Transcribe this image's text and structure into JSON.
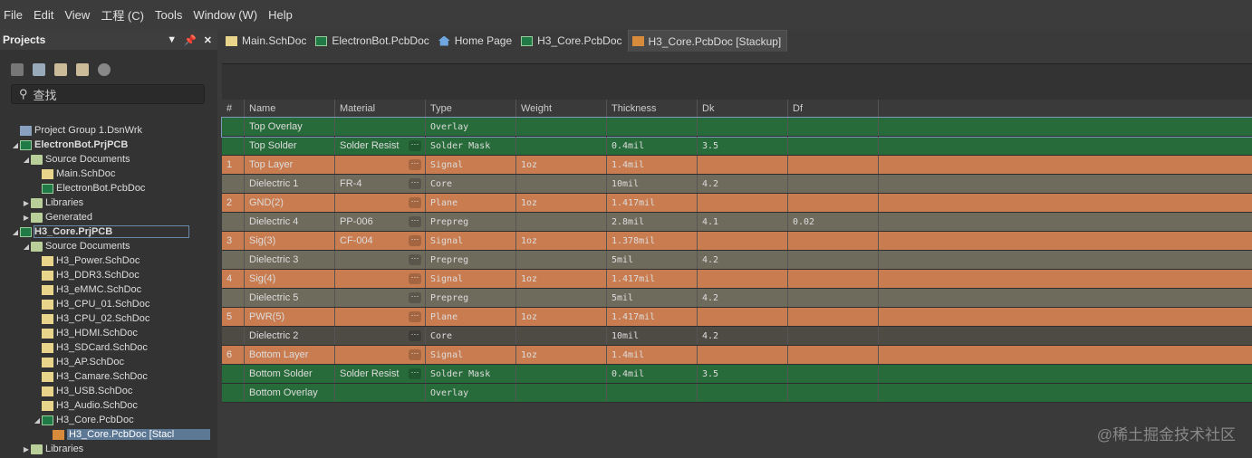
{
  "menu": [
    "File",
    "Edit",
    "View",
    "工程 (C)",
    "Tools",
    "Window (W)",
    "Help"
  ],
  "panel": {
    "title": "Projects",
    "search_placeholder": "查找",
    "tree": [
      {
        "label": "Project Group 1.DsnWrk",
        "indent": 0,
        "icon": "group",
        "arrow": ""
      },
      {
        "label": "ElectronBot.PrjPCB",
        "indent": 0,
        "icon": "pcb",
        "arrow": "expanded",
        "bold": true
      },
      {
        "label": "Source Documents",
        "indent": 1,
        "icon": "folder",
        "arrow": "expanded"
      },
      {
        "label": "Main.SchDoc",
        "indent": 2,
        "icon": "sch",
        "arrow": ""
      },
      {
        "label": "ElectronBot.PcbDoc",
        "indent": 2,
        "icon": "pcb",
        "arrow": ""
      },
      {
        "label": "Libraries",
        "indent": 1,
        "icon": "folder",
        "arrow": "collapsed"
      },
      {
        "label": "Generated",
        "indent": 1,
        "icon": "folder",
        "arrow": "collapsed"
      },
      {
        "label": "H3_Core.PrjPCB",
        "indent": 0,
        "icon": "pcb",
        "arrow": "expanded",
        "bold": true,
        "focus": true
      },
      {
        "label": "Source Documents",
        "indent": 1,
        "icon": "folder",
        "arrow": "expanded"
      },
      {
        "label": "H3_Power.SchDoc",
        "indent": 2,
        "icon": "sch",
        "arrow": ""
      },
      {
        "label": "H3_DDR3.SchDoc",
        "indent": 2,
        "icon": "sch",
        "arrow": ""
      },
      {
        "label": "H3_eMMC.SchDoc",
        "indent": 2,
        "icon": "sch",
        "arrow": ""
      },
      {
        "label": "H3_CPU_01.SchDoc",
        "indent": 2,
        "icon": "sch",
        "arrow": ""
      },
      {
        "label": "H3_CPU_02.SchDoc",
        "indent": 2,
        "icon": "sch",
        "arrow": ""
      },
      {
        "label": "H3_HDMI.SchDoc",
        "indent": 2,
        "icon": "sch",
        "arrow": ""
      },
      {
        "label": "H3_SDCard.SchDoc",
        "indent": 2,
        "icon": "sch",
        "arrow": ""
      },
      {
        "label": "H3_AP.SchDoc",
        "indent": 2,
        "icon": "sch",
        "arrow": ""
      },
      {
        "label": "H3_Camare.SchDoc",
        "indent": 2,
        "icon": "sch",
        "arrow": ""
      },
      {
        "label": "H3_USB.SchDoc",
        "indent": 2,
        "icon": "sch",
        "arrow": ""
      },
      {
        "label": "H3_Audio.SchDoc",
        "indent": 2,
        "icon": "sch",
        "arrow": ""
      },
      {
        "label": "H3_Core.PcbDoc",
        "indent": 2,
        "icon": "pcb",
        "arrow": "expanded"
      },
      {
        "label": "H3_Core.PcbDoc [Stacl",
        "indent": 3,
        "icon": "stk",
        "arrow": "",
        "selected": true
      },
      {
        "label": "Libraries",
        "indent": 1,
        "icon": "folder",
        "arrow": "collapsed"
      }
    ]
  },
  "tabs": [
    {
      "label": "Main.SchDoc",
      "icon": "sch"
    },
    {
      "label": "ElectronBot.PcbDoc",
      "icon": "pcb"
    },
    {
      "label": "Home Page",
      "icon": "home"
    },
    {
      "label": "H3_Core.PcbDoc",
      "icon": "pcb"
    },
    {
      "label": "H3_Core.PcbDoc [Stackup]",
      "icon": "stk",
      "active": true
    }
  ],
  "colors": {
    "overlay": "#286b3a",
    "signal": "#c87c50",
    "dielectric": "#6e6a5c",
    "dielectric_selected": "#4e4b45"
  },
  "columns": [
    "#",
    "Name",
    "Material",
    "Type",
    "Weight",
    "Thickness",
    "Dk",
    "Df"
  ],
  "rows": [
    {
      "num": "",
      "name": "Top Overlay",
      "material": "",
      "type": "Overlay",
      "weight": "",
      "thickness": "",
      "dk": "",
      "df": "",
      "kind": "overlay",
      "dots": false,
      "focus": true
    },
    {
      "num": "",
      "name": "Top Solder",
      "material": "Solder Resist",
      "type": "Solder Mask",
      "weight": "",
      "thickness": "0.4mil",
      "dk": "3.5",
      "df": "",
      "kind": "overlay",
      "dots": true
    },
    {
      "num": "1",
      "name": "Top Layer",
      "material": "",
      "type": "Signal",
      "weight": "1oz",
      "thickness": "1.4mil",
      "dk": "",
      "df": "",
      "kind": "signal",
      "dots": true
    },
    {
      "num": "",
      "name": "Dielectric 1",
      "material": "FR-4",
      "type": "Core",
      "weight": "",
      "thickness": "10mil",
      "dk": "4.2",
      "df": "",
      "kind": "dielectric",
      "dots": true
    },
    {
      "num": "2",
      "name": "GND(2)",
      "material": "",
      "type": "Plane",
      "weight": "1oz",
      "thickness": "1.417mil",
      "dk": "",
      "df": "",
      "kind": "signal",
      "dots": true
    },
    {
      "num": "",
      "name": "Dielectric 4",
      "material": "PP-006",
      "type": "Prepreg",
      "weight": "",
      "thickness": "2.8mil",
      "dk": "4.1",
      "df": "0.02",
      "kind": "dielectric",
      "dots": true
    },
    {
      "num": "3",
      "name": "Sig(3)",
      "material": "CF-004",
      "type": "Signal",
      "weight": "1oz",
      "thickness": "1.378mil",
      "dk": "",
      "df": "",
      "kind": "signal",
      "dots": true
    },
    {
      "num": "",
      "name": "Dielectric 3",
      "material": "",
      "type": "Prepreg",
      "weight": "",
      "thickness": "5mil",
      "dk": "4.2",
      "df": "",
      "kind": "dielectric",
      "dots": true
    },
    {
      "num": "4",
      "name": "Sig(4)",
      "material": "",
      "type": "Signal",
      "weight": "1oz",
      "thickness": "1.417mil",
      "dk": "",
      "df": "",
      "kind": "signal",
      "dots": true
    },
    {
      "num": "",
      "name": "Dielectric 5",
      "material": "",
      "type": "Prepreg",
      "weight": "",
      "thickness": "5mil",
      "dk": "4.2",
      "df": "",
      "kind": "dielectric",
      "dots": true
    },
    {
      "num": "5",
      "name": "PWR(5)",
      "material": "",
      "type": "Plane",
      "weight": "1oz",
      "thickness": "1.417mil",
      "dk": "",
      "df": "",
      "kind": "signal",
      "dots": true
    },
    {
      "num": "",
      "name": "Dielectric 2",
      "material": "",
      "type": "Core",
      "weight": "",
      "thickness": "10mil",
      "dk": "4.2",
      "df": "",
      "kind": "dielectric_selected",
      "dots": true
    },
    {
      "num": "6",
      "name": "Bottom Layer",
      "material": "",
      "type": "Signal",
      "weight": "1oz",
      "thickness": "1.4mil",
      "dk": "",
      "df": "",
      "kind": "signal",
      "dots": true
    },
    {
      "num": "",
      "name": "Bottom Solder",
      "material": "Solder Resist",
      "type": "Solder Mask",
      "weight": "",
      "thickness": "0.4mil",
      "dk": "3.5",
      "df": "",
      "kind": "overlay",
      "dots": true
    },
    {
      "num": "",
      "name": "Bottom Overlay",
      "material": "",
      "type": "Overlay",
      "weight": "",
      "thickness": "",
      "dk": "",
      "df": "",
      "kind": "overlay",
      "dots": false
    }
  ],
  "watermark": "@稀土掘金技术社区"
}
